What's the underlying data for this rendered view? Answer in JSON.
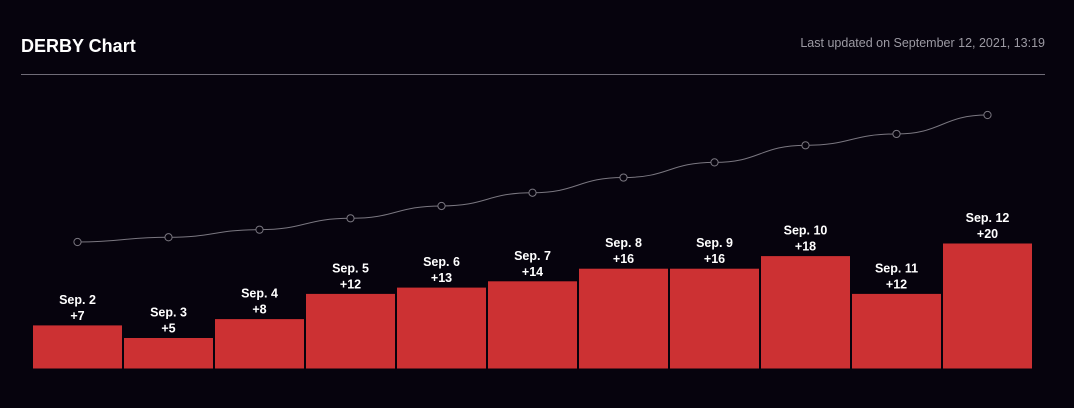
{
  "header": {
    "title": "DERBY Chart",
    "updated": "Last updated on September 12, 2021, 13:19"
  },
  "colors": {
    "background": "#06030d",
    "bar": "#cc3133",
    "bar_border": "#06030d",
    "line": "#7a7780",
    "divider": "#6f6c77"
  },
  "chart_data": {
    "type": "bar",
    "categories": [
      "Sep. 2",
      "Sep. 3",
      "Sep. 4",
      "Sep. 5",
      "Sep. 6",
      "Sep. 7",
      "Sep. 8",
      "Sep. 9",
      "Sep. 10",
      "Sep. 11",
      "Sep. 12"
    ],
    "series": [
      {
        "values": [
          7,
          5,
          8,
          12,
          13,
          14,
          16,
          16,
          18,
          12,
          20
        ],
        "value_labels": [
          "+7",
          "+5",
          "+8",
          "+12",
          "+13",
          "+14",
          "+16",
          "+16",
          "+18",
          "+12",
          "+20"
        ]
      },
      {
        "type": "line",
        "values": [
          7,
          12,
          20,
          32,
          45,
          59,
          75,
          91,
          109,
          121,
          141
        ]
      }
    ],
    "title": "DERBY Chart",
    "xlabel": "",
    "ylabel": "",
    "grid": false,
    "legend": "none"
  }
}
